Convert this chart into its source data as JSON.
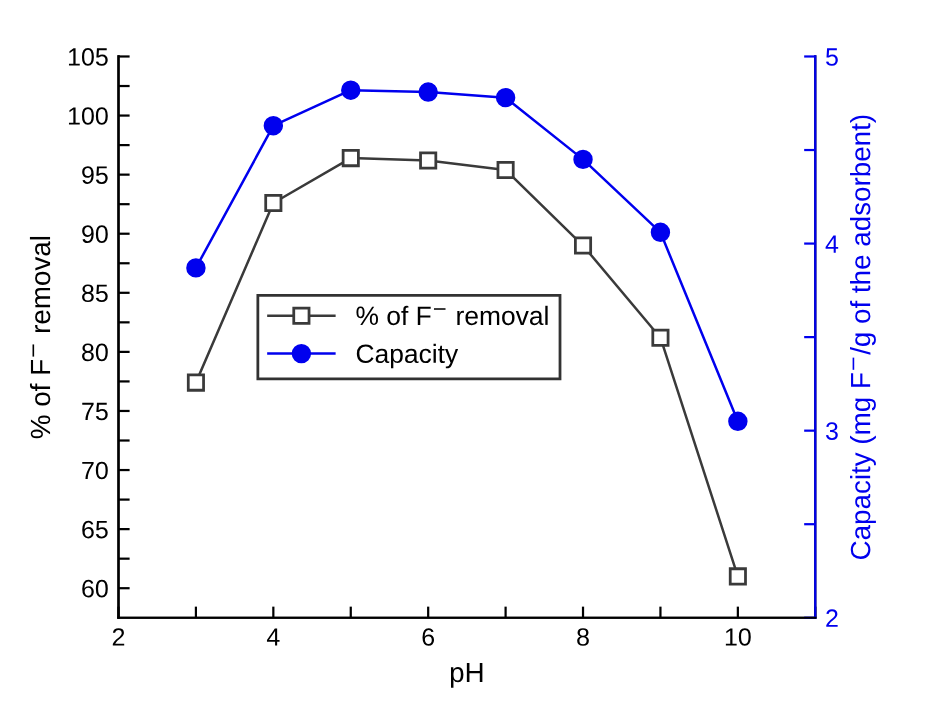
{
  "chart_data": {
    "type": "line",
    "xlabel": "pH",
    "ylabel": "% of F$^{−}$ removal",
    "y2label": "Capacity (mg F$^{−}$/g of the adsorbent)",
    "x": [
      3,
      4,
      5,
      6,
      7,
      8,
      9,
      10
    ],
    "series": [
      {
        "name": "% of F$^{−}$ removal",
        "color": "#3a3a3a",
        "marker": "square",
        "values": [
          77.4,
          92.6,
          96.4,
          96.2,
          95.4,
          89.0,
          81.2,
          61.0
        ]
      },
      {
        "name": "Capacity",
        "color": "#0000ee",
        "marker": "circle",
        "axis": "y2",
        "values": [
          3.87,
          4.63,
          4.82,
          4.81,
          4.78,
          4.45,
          4.06,
          3.05
        ]
      }
    ],
    "xlim": [
      2,
      11
    ],
    "xticks": [
      2,
      {
        "value": 3,
        "label": null
      },
      4,
      {
        "value": 5,
        "label": null
      },
      6,
      {
        "value": 7,
        "label": null
      },
      8,
      {
        "value": 9,
        "label": null
      },
      10,
      {
        "value": 11,
        "label": null
      }
    ],
    "ylim": [
      57.5,
      105
    ],
    "yticks": [
      60,
      {
        "value": 62.5,
        "label": null
      },
      65,
      {
        "value": 67.5,
        "label": null
      },
      70,
      {
        "value": 72.5,
        "label": null
      },
      75,
      {
        "value": 77.5,
        "label": null
      },
      80,
      {
        "value": 82.5,
        "label": null
      },
      85,
      {
        "value": 87.5,
        "label": null
      },
      90,
      {
        "value": 92.5,
        "label": null
      },
      95,
      {
        "value": 97.5,
        "label": null
      },
      100,
      {
        "value": 102.5,
        "label": null
      },
      105
    ],
    "y2lim": [
      2,
      5
    ],
    "y2ticks": [
      2,
      {
        "value": 2.5,
        "label": null
      },
      3,
      {
        "value": 3.5,
        "label": null
      },
      4,
      {
        "value": 4.5,
        "label": null
      },
      5
    ],
    "legend": "center left",
    "grid": false
  }
}
